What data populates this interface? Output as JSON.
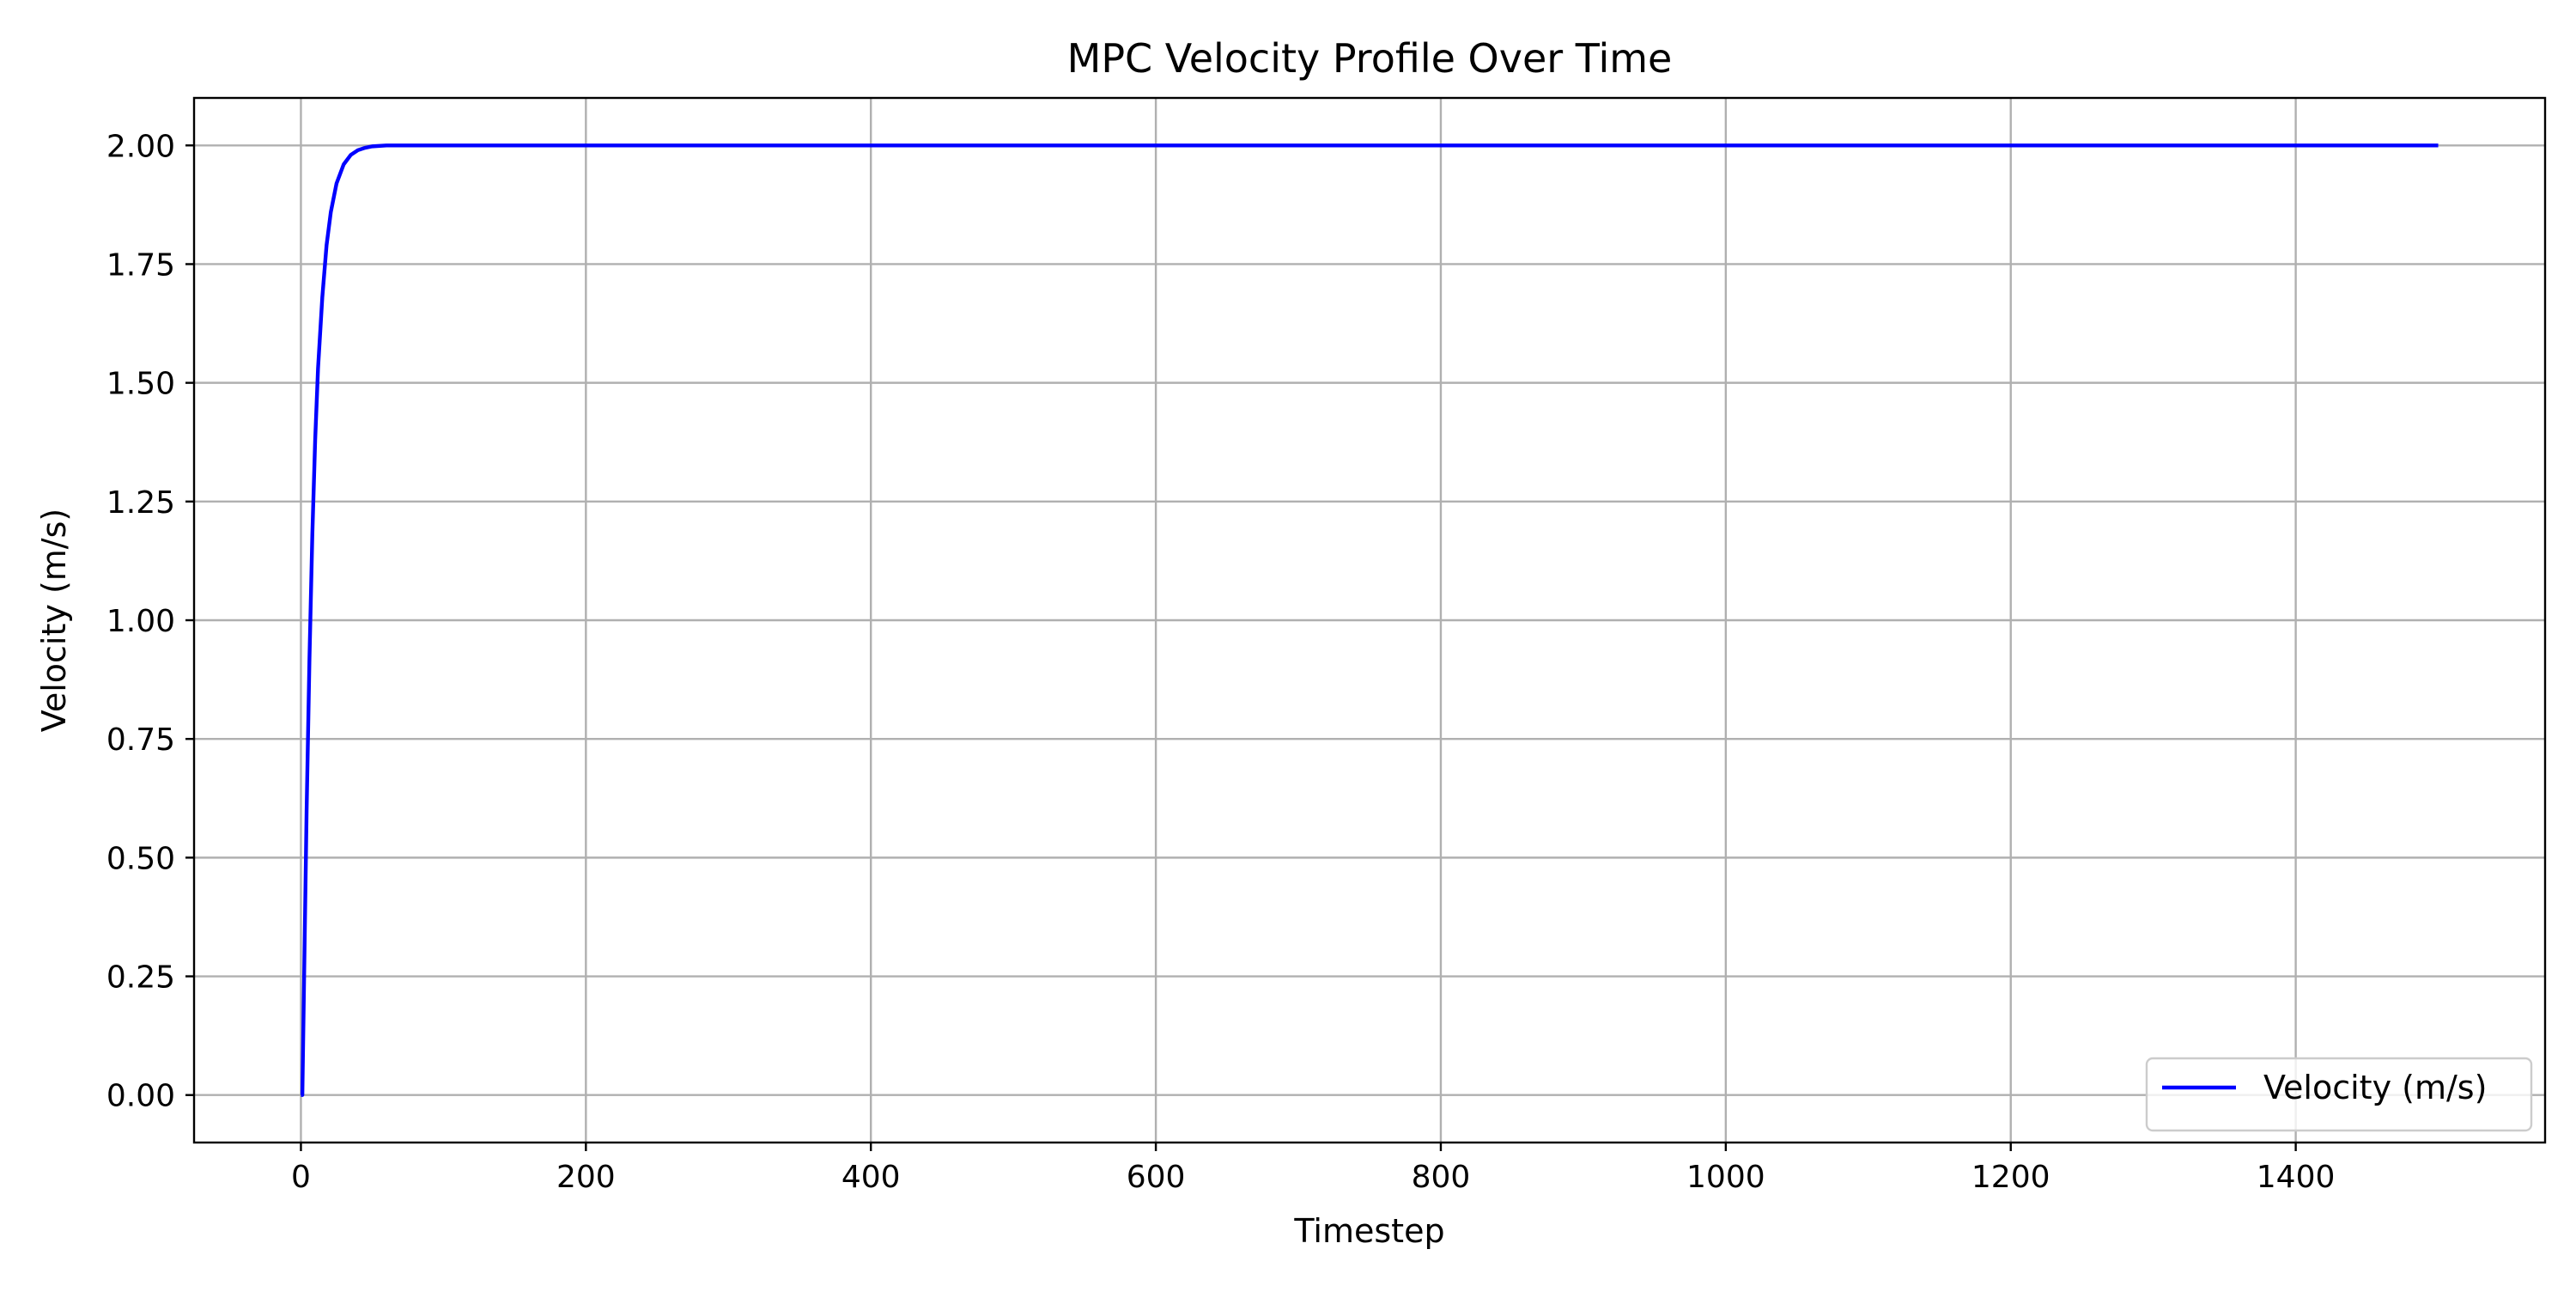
{
  "chart_data": {
    "type": "line",
    "title": "MPC Velocity Profile Over Time",
    "xlabel": "Timestep",
    "ylabel": "Velocity (m/s)",
    "xlim": [
      -75,
      1575
    ],
    "ylim": [
      -0.1,
      2.1
    ],
    "xticks": [
      0,
      200,
      400,
      600,
      800,
      1000,
      1200,
      1400
    ],
    "xtick_labels": [
      "0",
      "200",
      "400",
      "600",
      "800",
      "1000",
      "1200",
      "1400"
    ],
    "yticks": [
      0.0,
      0.25,
      0.5,
      0.75,
      1.0,
      1.25,
      1.5,
      1.75,
      2.0
    ],
    "ytick_labels": [
      "0.00",
      "0.25",
      "0.50",
      "0.75",
      "1.00",
      "1.25",
      "1.50",
      "1.75",
      "2.00"
    ],
    "grid": true,
    "legend": {
      "position": "lower-right",
      "entries": [
        "Velocity (m/s)"
      ]
    },
    "series": [
      {
        "name": "Velocity (m/s)",
        "color": "#0000ff",
        "x": [
          0,
          1,
          2,
          4,
          6,
          8,
          10,
          12,
          15,
          18,
          21,
          25,
          30,
          35,
          40,
          45,
          50,
          60,
          70,
          80,
          100,
          150,
          200,
          300,
          400,
          500,
          600,
          700,
          800,
          900,
          1000,
          1100,
          1200,
          1300,
          1400,
          1500
        ],
        "y": [
          0.0,
          0.0,
          0.2,
          0.6,
          0.92,
          1.18,
          1.38,
          1.53,
          1.68,
          1.79,
          1.86,
          1.92,
          1.96,
          1.98,
          1.99,
          1.995,
          1.998,
          2.0,
          2.0,
          2.0,
          2.0,
          2.0,
          2.0,
          2.0,
          2.0,
          2.0,
          2.0,
          2.0,
          2.0,
          2.0,
          2.0,
          2.0,
          2.0,
          2.0,
          2.0,
          2.0
        ]
      }
    ]
  }
}
